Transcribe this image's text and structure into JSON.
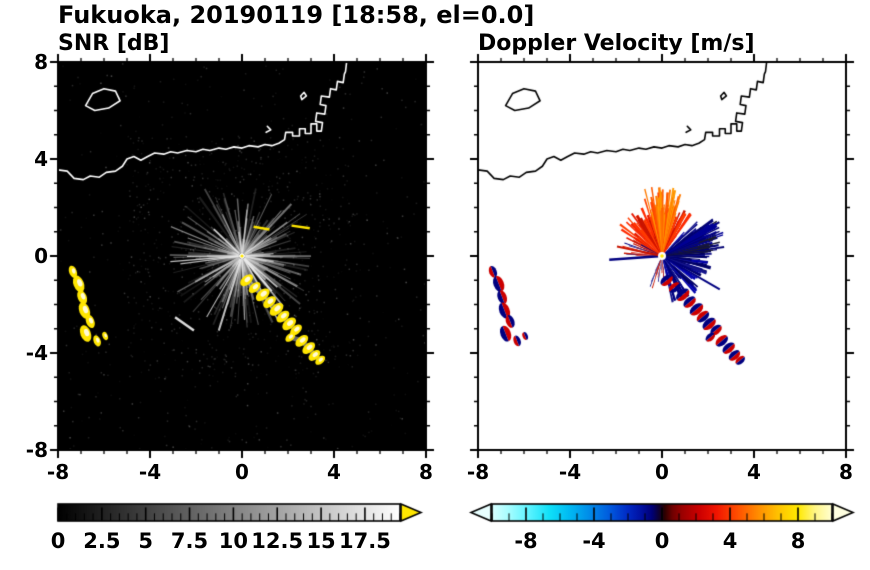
{
  "title": "Fukuoka, 20190119 [18:58, el=0.0]",
  "chart_data": {
    "type": "heatmap",
    "title": "Fukuoka, 20190119 [18:58, el=0.0]",
    "x_range": [
      -8,
      8
    ],
    "y_range": [
      -8,
      8
    ],
    "x_ticks": [
      -8,
      -4,
      0,
      4,
      8
    ],
    "y_ticks": [
      8,
      4,
      0,
      -4,
      -8
    ],
    "minor_tick_step": 1,
    "panels": [
      {
        "key": "snr",
        "title": "SNR [dB]",
        "background": "#000000",
        "coast_color": "#ffffff",
        "colorbar": {
          "min": 0,
          "max": 19.5,
          "minor_step": 0.5,
          "tick_values": [
            0,
            2.5,
            5,
            7.5,
            10,
            12.5,
            15,
            17.5
          ],
          "tick_labels": [
            "0",
            "2.5",
            "5",
            "7.5",
            "10",
            "12.5",
            "15",
            "17.5"
          ],
          "gradient": [
            [
              0,
              "#000000"
            ],
            [
              0.55,
              "#8c8c8c"
            ],
            [
              1,
              "#ffffff"
            ]
          ],
          "right_arrow": "#ffe600"
        }
      },
      {
        "key": "doppler",
        "title": "Doppler Velocity [m/s]",
        "background": "#ffffff",
        "coast_color": "#000000",
        "colorbar": {
          "min": -10,
          "max": 10,
          "minor_step": 1,
          "tick_values": [
            -8,
            -4,
            0,
            4,
            8
          ],
          "tick_labels": [
            "-8",
            "-4",
            "0",
            "4",
            "8"
          ],
          "gradient": [
            [
              0,
              "#d9ffff"
            ],
            [
              0.05,
              "#a5fdff"
            ],
            [
              0.11,
              "#5af3ff"
            ],
            [
              0.17,
              "#0fe0f8"
            ],
            [
              0.23,
              "#00b8f2"
            ],
            [
              0.29,
              "#0089e8"
            ],
            [
              0.35,
              "#0057dd"
            ],
            [
              0.4,
              "#0029c4"
            ],
            [
              0.44,
              "#0010a0"
            ],
            [
              0.47,
              "#000078"
            ],
            [
              0.492,
              "#0e0030"
            ],
            [
              0.508,
              "#2c0000"
            ],
            [
              0.53,
              "#6e0000"
            ],
            [
              0.56,
              "#9c0000"
            ],
            [
              0.61,
              "#cc0000"
            ],
            [
              0.66,
              "#f01400"
            ],
            [
              0.72,
              "#ff4d00"
            ],
            [
              0.78,
              "#ff8a00"
            ],
            [
              0.84,
              "#ffc100"
            ],
            [
              0.9,
              "#ffe900"
            ],
            [
              0.95,
              "#fff685"
            ],
            [
              1,
              "#ffffd2"
            ]
          ],
          "left_arrow": "#e8ffff",
          "right_arrow": "#ffffe0"
        }
      }
    ],
    "radar_center": [
      0,
      0
    ],
    "coastline": [
      [
        [
          -6.8,
          6.2
        ],
        [
          -6.5,
          6.7
        ],
        [
          -6.0,
          6.9
        ],
        [
          -5.5,
          6.8
        ],
        [
          -5.3,
          6.4
        ],
        [
          -5.8,
          6.1
        ],
        [
          -6.4,
          6.0
        ],
        [
          -6.8,
          6.2
        ]
      ],
      [
        [
          -8,
          3.55
        ],
        [
          -7.6,
          3.5
        ],
        [
          -7.3,
          3.2
        ],
        [
          -6.9,
          3.15
        ],
        [
          -6.6,
          3.3
        ],
        [
          -6.2,
          3.25
        ],
        [
          -5.9,
          3.45
        ],
        [
          -5.5,
          3.5
        ],
        [
          -5.2,
          3.7
        ],
        [
          -5.0,
          4.0
        ],
        [
          -4.7,
          4.1
        ],
        [
          -4.4,
          3.95
        ],
        [
          -4.1,
          4.1
        ],
        [
          -3.8,
          4.25
        ],
        [
          -3.4,
          4.2
        ],
        [
          -3.1,
          4.3
        ],
        [
          -2.8,
          4.25
        ],
        [
          -2.4,
          4.35
        ],
        [
          -2.0,
          4.3
        ],
        [
          -1.7,
          4.4
        ],
        [
          -1.4,
          4.35
        ],
        [
          -1.0,
          4.45
        ],
        [
          -0.7,
          4.4
        ],
        [
          -0.35,
          4.5
        ],
        [
          0.0,
          4.45
        ],
        [
          0.3,
          4.55
        ],
        [
          0.7,
          4.5
        ],
        [
          1.0,
          4.6
        ],
        [
          1.3,
          4.55
        ],
        [
          1.6,
          4.65
        ],
        [
          1.85,
          4.8
        ],
        [
          1.9,
          5.1
        ],
        [
          2.2,
          5.1
        ],
        [
          2.2,
          4.95
        ],
        [
          2.5,
          4.95
        ],
        [
          2.5,
          5.25
        ],
        [
          2.75,
          5.25
        ],
        [
          2.75,
          5.05
        ],
        [
          3.0,
          5.05
        ],
        [
          3.0,
          5.45
        ],
        [
          3.25,
          5.45
        ],
        [
          3.25,
          5.15
        ],
        [
          3.45,
          5.15
        ],
        [
          3.5,
          5.5
        ],
        [
          3.2,
          5.55
        ],
        [
          3.25,
          5.9
        ],
        [
          3.6,
          5.85
        ],
        [
          3.65,
          6.2
        ],
        [
          3.4,
          6.25
        ],
        [
          3.45,
          6.6
        ],
        [
          3.8,
          6.55
        ],
        [
          3.85,
          6.9
        ],
        [
          4.1,
          6.85
        ],
        [
          4.15,
          7.2
        ],
        [
          4.4,
          7.15
        ],
        [
          4.45,
          7.5
        ],
        [
          4.5,
          7.6
        ],
        [
          4.55,
          8.0
        ]
      ],
      [
        [
          2.6,
          6.45
        ],
        [
          2.8,
          6.6
        ],
        [
          2.7,
          6.75
        ],
        [
          2.55,
          6.6
        ],
        [
          2.6,
          6.45
        ]
      ],
      [
        [
          1.05,
          5.1
        ],
        [
          1.25,
          5.2
        ],
        [
          1.1,
          5.35
        ]
      ]
    ],
    "snr_field": {
      "seed": 7,
      "speckle_n": 1100,
      "ray_n": 300,
      "bright_ray_n": 26,
      "streaks": [
        [
          -2.5,
          -2.8,
          0.5,
          -35,
          "#dcdcdc"
        ],
        [
          0.85,
          1.15,
          0.35,
          -10,
          "#ffe600"
        ],
        [
          2.55,
          1.2,
          0.4,
          -8,
          "#ffe600"
        ]
      ]
    },
    "doppler_field": {
      "pos_color": "#cc0000",
      "neg_color": "#000080",
      "fans": [
        {
          "seed": 11,
          "a0": 55,
          "a1": 150,
          "rmin": 0.9,
          "rmax": 2.3,
          "n": 150,
          "wmin": 1.5,
          "wmax": 4,
          "colors": [
            "#e81800",
            "#ff3c00",
            "#c81400",
            "#ff2a00"
          ]
        },
        {
          "seed": 12,
          "a0": 72,
          "a1": 108,
          "rmin": 1.7,
          "rmax": 3.05,
          "n": 80,
          "wmin": 1,
          "wmax": 2.5,
          "colors": [
            "#ff5a00",
            "#ff7b00",
            "#ff9a00",
            "#ff4400"
          ]
        },
        {
          "seed": 13,
          "a0": -78,
          "a1": 48,
          "rmin": 0.8,
          "rmax": 2.2,
          "n": 170,
          "wmin": 1.5,
          "wmax": 4,
          "colors": [
            "#000080",
            "#0000ad",
            "#000060",
            "#15158c"
          ]
        },
        {
          "seed": 14,
          "a0": 5,
          "a1": 38,
          "rmin": 1.5,
          "rmax": 2.9,
          "n": 60,
          "wmin": 1,
          "wmax": 2.5,
          "colors": [
            "#000072",
            "#000096",
            "#1b1b30"
          ]
        },
        {
          "seed": 15,
          "a0": 150,
          "a1": 180,
          "rmin": 0.5,
          "rmax": 1.8,
          "n": 30,
          "wmin": 1,
          "wmax": 2.5,
          "colors": [
            "#c81400",
            "#000080",
            "#e81800"
          ]
        },
        {
          "seed": 16,
          "a0": -118,
          "a1": -82,
          "rmin": 0.4,
          "rmax": 1.5,
          "n": 22,
          "wmin": 1,
          "wmax": 2,
          "colors": [
            "#000080",
            "#c81400"
          ]
        }
      ],
      "spikes": [
        [
          184,
          2.3,
          2.4,
          "#000080"
        ],
        [
          168,
          2.0,
          2,
          "#c81400"
        ],
        [
          -30,
          2.9,
          2,
          "#000080"
        ]
      ]
    },
    "echoes": {
      "west_group": [
        [
          -7.35,
          -0.65,
          0.22
        ],
        [
          -7.1,
          -1.15,
          0.3
        ],
        [
          -6.95,
          -1.7,
          0.26
        ],
        [
          -6.85,
          -2.25,
          0.3
        ],
        [
          -6.6,
          -2.7,
          0.24
        ],
        [
          -6.8,
          -3.2,
          0.3
        ],
        [
          -6.3,
          -3.5,
          0.2
        ],
        [
          -5.95,
          -3.3,
          0.15
        ]
      ],
      "southeast_chain": [
        [
          0.2,
          -1.0,
          0.26
        ],
        [
          0.55,
          -1.3,
          0.24
        ],
        [
          0.9,
          -1.6,
          0.28
        ],
        [
          1.2,
          -1.9,
          0.26
        ],
        [
          1.5,
          -2.2,
          0.28
        ],
        [
          1.78,
          -2.5,
          0.26
        ],
        [
          2.05,
          -2.8,
          0.28
        ],
        [
          2.35,
          -3.05,
          0.24
        ],
        [
          2.1,
          -3.35,
          0.2
        ],
        [
          2.6,
          -3.5,
          0.26
        ],
        [
          2.9,
          -3.8,
          0.26
        ],
        [
          3.15,
          -4.1,
          0.24
        ],
        [
          3.4,
          -4.3,
          0.2
        ]
      ]
    }
  }
}
